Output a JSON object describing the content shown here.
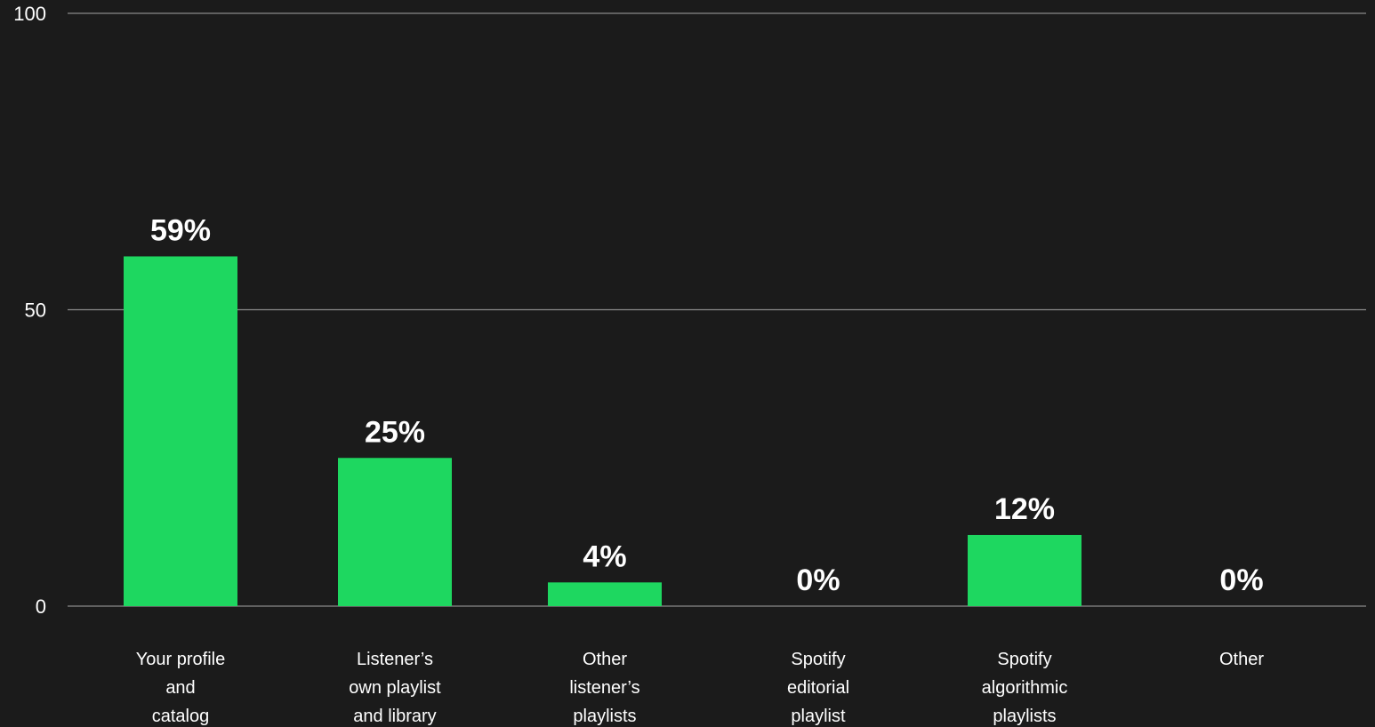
{
  "chart_data": {
    "type": "bar",
    "categories": [
      "Your profile and catalog",
      "Listener’s own playlist and library",
      "Other listener’s playlists",
      "Spotify editorial playlist",
      "Spotify algorithmic playlists",
      "Other"
    ],
    "category_lines": [
      [
        "Your profile",
        "and",
        "catalog"
      ],
      [
        "Listener’s",
        "own playlist",
        "and library"
      ],
      [
        "Other",
        "listener’s",
        "playlists"
      ],
      [
        "Spotify",
        "editorial",
        "playlist"
      ],
      [
        "Spotify",
        "algorithmic",
        "playlists"
      ],
      [
        "Other"
      ]
    ],
    "values": [
      59,
      25,
      4,
      0,
      12,
      0
    ],
    "data_labels": [
      "59%",
      "25%",
      "4%",
      "0%",
      "12%",
      "0%"
    ],
    "yticks": [
      "0",
      "50",
      "100"
    ],
    "ytick_values": [
      0,
      50,
      100
    ],
    "ylim": [
      0,
      100
    ],
    "grid": true,
    "legend": "none",
    "title": "",
    "xlabel": "",
    "ylabel": "",
    "colors": {
      "background": "#1b1b1b",
      "bar": "#1ed760",
      "text": "#ffffff",
      "grid": "#8a8a8a"
    }
  }
}
